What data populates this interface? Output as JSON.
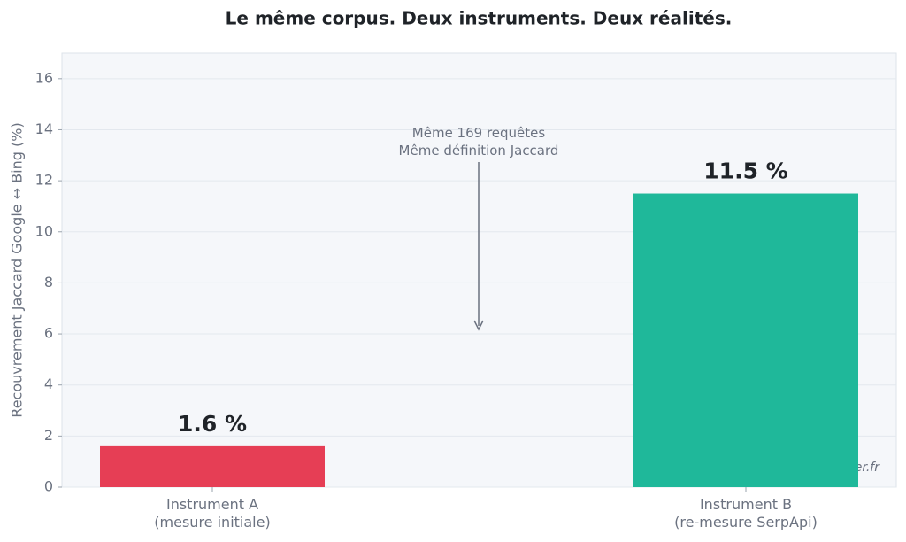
{
  "chart_data": {
    "type": "bar",
    "title": "Le même corpus. Deux instruments. Deux réalités.",
    "y_label": "Recouvrement Jaccard Google ↔ Bing (%)",
    "categories": [
      "Instrument A\n(mesure initiale)",
      "Instrument B\n(re-mesure SerpApi)"
    ],
    "values": [
      1.6,
      11.5
    ],
    "value_labels": [
      "1.6 %",
      "11.5 %"
    ],
    "colors": [
      "#e63e55",
      "#1fb89a"
    ],
    "ylim": [
      0,
      17
    ],
    "yticks": [
      0,
      2,
      4,
      6,
      8,
      10,
      12,
      14,
      16
    ],
    "grid": true,
    "annotation": "Même 169 requêtes\nMême définition Jaccard",
    "watermark": "semawriter.fr"
  }
}
